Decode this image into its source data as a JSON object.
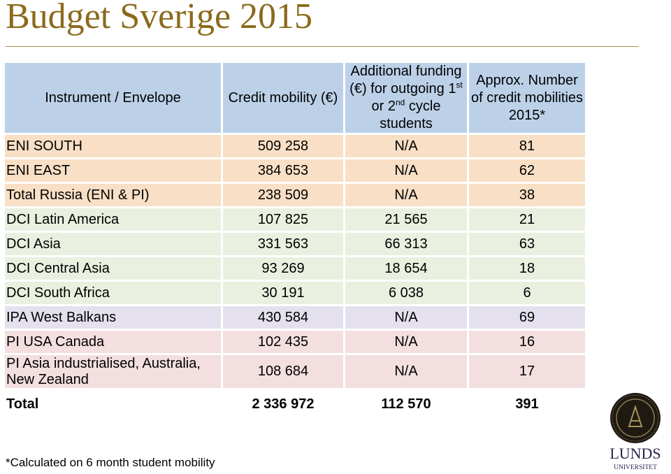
{
  "slide": {
    "title": "Budget Sverige 2015",
    "footnote": "*Calculated on 6 month student mobility"
  },
  "table": {
    "headers": {
      "instrument": "Instrument / Envelope",
      "credit": "Credit mobility (€)",
      "additional_a": "Additional funding (€) for outgoing 1",
      "additional_sup1": "st",
      "additional_b": " or 2",
      "additional_sup2": "nd",
      "additional_c": " cycle students",
      "approx": "Approx. Number of credit mobilities 2015*"
    },
    "rows": [
      {
        "instrument": "ENI SOUTH",
        "credit": "509 258",
        "additional": "N/A",
        "approx": "81"
      },
      {
        "instrument": "ENI EAST",
        "credit": "384 653",
        "additional": "N/A",
        "approx": "62"
      },
      {
        "instrument": "Total Russia (ENI & PI)",
        "credit": "238 509",
        "additional": "N/A",
        "approx": "38"
      },
      {
        "instrument": "DCI   Latin America",
        "credit": "107 825",
        "additional": "21 565",
        "approx": "21"
      },
      {
        "instrument": "DCI   Asia",
        "credit": "331 563",
        "additional": "66 313",
        "approx": "63"
      },
      {
        "instrument": "DCI   Central Asia",
        "credit": "93 269",
        "additional": "18 654",
        "approx": "18"
      },
      {
        "instrument": "DCI   South Africa",
        "credit": "30 191",
        "additional": "6 038",
        "approx": "6"
      },
      {
        "instrument": "IPA    West Balkans",
        "credit": "430 584",
        "additional": "N/A",
        "approx": "69"
      },
      {
        "instrument": "PI   USA Canada",
        "credit": "102 435",
        "additional": "N/A",
        "approx": "16"
      },
      {
        "instrument": "PI   Asia industrialised, Australia, New Zealand",
        "credit": "108 684",
        "additional": "N/A",
        "approx": "17"
      }
    ],
    "total": {
      "label": "Total",
      "credit": "2 336 972",
      "additional": "112 570",
      "approx": "391"
    }
  },
  "logo": {
    "text_top": "LUNDS",
    "text_bottom": "UNIVERSITET",
    "color": "#2a2352",
    "seal_color": "#1e1a12"
  }
}
